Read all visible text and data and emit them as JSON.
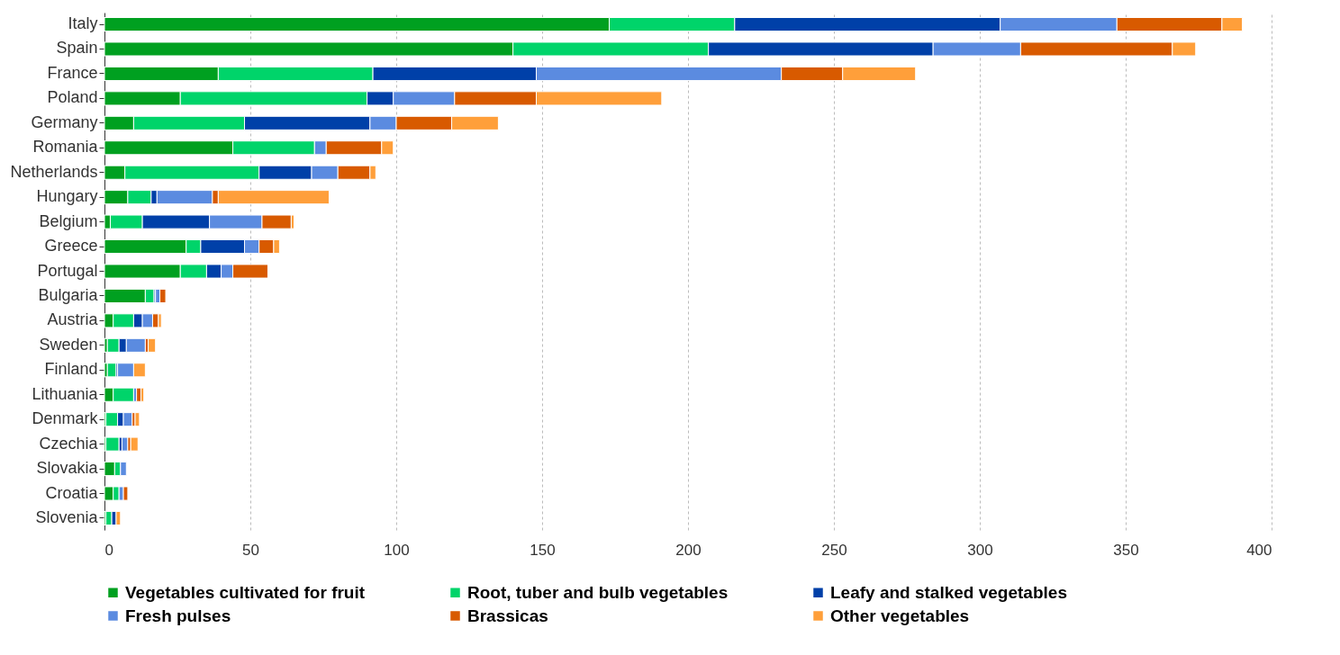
{
  "chart_data": {
    "type": "bar",
    "orientation": "horizontal",
    "stacked": true,
    "categories": [
      "Italy",
      "Spain",
      "France",
      "Poland",
      "Germany",
      "Romania",
      "Netherlands",
      "Hungary",
      "Belgium",
      "Greece",
      "Portugal",
      "Bulgaria",
      "Austria",
      "Sweden",
      "Finland",
      "Lithuania",
      "Denmark",
      "Czechia",
      "Slovakia",
      "Croatia",
      "Slovenia"
    ],
    "series": [
      {
        "name": "Vegetables cultivated for fruit",
        "color": "#00a020",
        "values": [
          173,
          140,
          39,
          26,
          10,
          44,
          7,
          8,
          2,
          28,
          26,
          14,
          3,
          1,
          1,
          3,
          0.5,
          0.5,
          3.5,
          3,
          0.5
        ]
      },
      {
        "name": "Root, tuber and bulb vegetables",
        "color": "#00d46a",
        "values": [
          43,
          67,
          53,
          64,
          38,
          28,
          46,
          8,
          11,
          5,
          9,
          3,
          7,
          4,
          3,
          7,
          4,
          4.5,
          2,
          2,
          2
        ]
      },
      {
        "name": "Leafy and stalked vegetables",
        "color": "#0040a8",
        "values": [
          91,
          77,
          56,
          9,
          43,
          0,
          18,
          2,
          23,
          15,
          5,
          0.5,
          3,
          2.5,
          0.5,
          0,
          2,
          1,
          0,
          0,
          1.5
        ]
      },
      {
        "name": "Fresh pulses",
        "color": "#5b8be0",
        "values": [
          40,
          30,
          84,
          21,
          9,
          4,
          9,
          19,
          18,
          5,
          4,
          1.5,
          3.5,
          6.5,
          5.5,
          1,
          3,
          2,
          2,
          1.5,
          0
        ]
      },
      {
        "name": "Brassicas",
        "color": "#d85a00",
        "values": [
          36,
          52,
          21,
          28,
          19,
          19,
          11,
          2,
          10,
          5,
          12,
          2,
          2,
          1,
          null,
          1.5,
          1,
          1,
          0,
          1.5,
          0
        ]
      },
      {
        "name": "Other vegetables",
        "color": "#ff9f3a",
        "values": [
          7,
          8,
          25,
          43,
          16,
          4,
          2,
          38,
          1,
          2,
          0,
          0,
          1,
          2.5,
          4,
          1,
          1.5,
          2.5,
          0,
          0,
          1.5
        ]
      }
    ],
    "xlim": [
      0,
      400
    ],
    "xticks": [
      0,
      50,
      100,
      150,
      200,
      250,
      300,
      350,
      400
    ],
    "grid": "x",
    "legend": "bottom"
  }
}
